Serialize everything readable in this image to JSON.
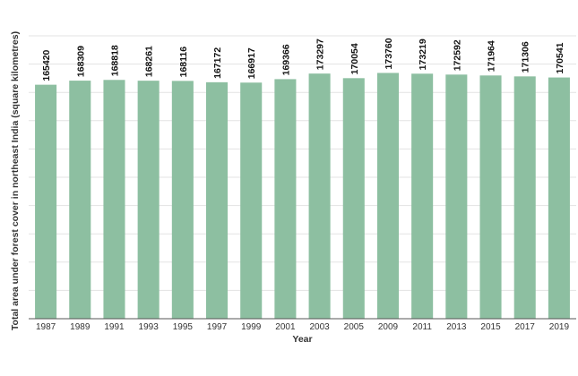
{
  "chart_data": {
    "type": "bar",
    "title": "",
    "xlabel": "Year",
    "ylabel": "Total area under forest cover in northeast India (square kilometres)",
    "categories": [
      "1987",
      "1989",
      "1991",
      "1993",
      "1995",
      "1997",
      "1999",
      "2001",
      "2003",
      "2005",
      "2009",
      "2011",
      "2013",
      "2015",
      "2017",
      "2019"
    ],
    "values": [
      165420,
      168309,
      168818,
      168261,
      168116,
      167172,
      166917,
      169366,
      173297,
      170054,
      173760,
      173219,
      172592,
      171964,
      171306,
      170541
    ],
    "ylim": [
      0,
      200000
    ],
    "grid": true,
    "legend": "none",
    "colors": {
      "bar": "#8dbfa1",
      "grid": "#e3e3e3",
      "axis": "#555555"
    }
  }
}
